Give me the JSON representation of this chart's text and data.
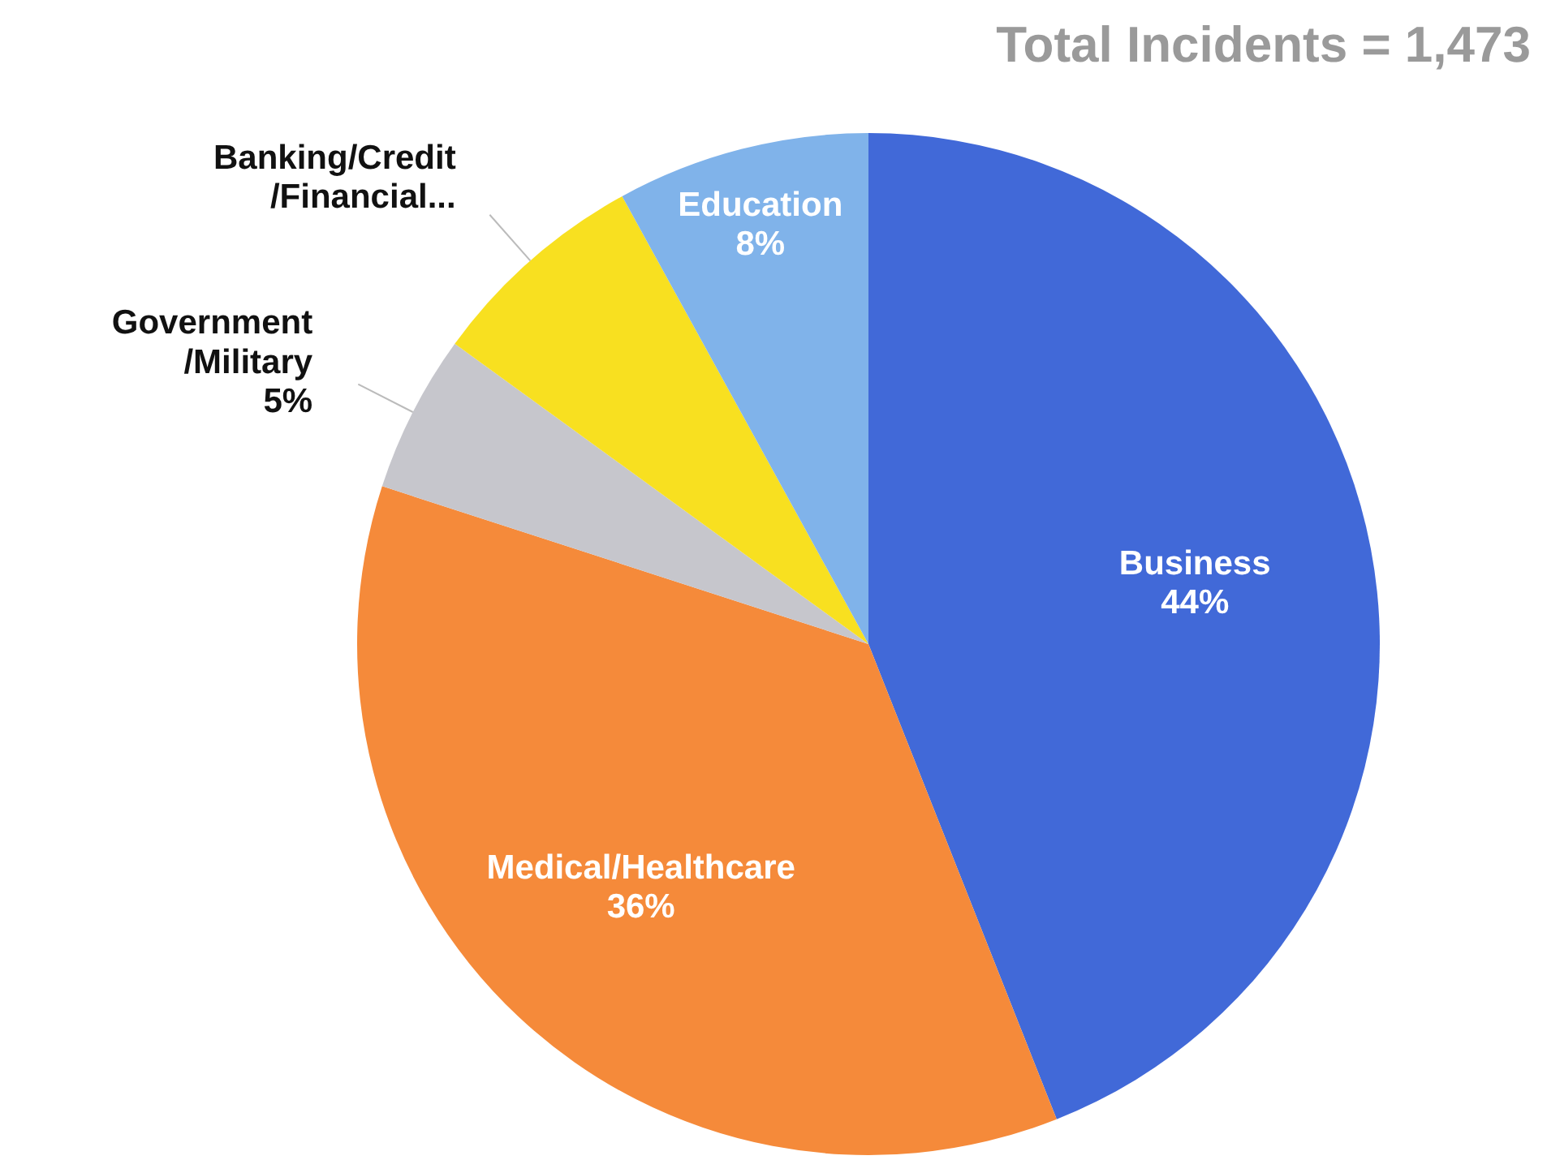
{
  "chart_data": {
    "type": "pie",
    "title": "Total Incidents = 1,473",
    "categories": [
      "Business",
      "Medical/Healthcare",
      "Government/Military",
      "Banking/Credit/Financial...",
      "Education"
    ],
    "values": [
      44,
      36,
      5,
      7,
      8
    ],
    "colors": [
      "#4169d8",
      "#f58a3a",
      "#c6c6cc",
      "#f8e020",
      "#80b3ea"
    ],
    "value_labels": [
      "44%",
      "36%",
      "5%",
      null,
      "8%"
    ],
    "legend": false
  }
}
